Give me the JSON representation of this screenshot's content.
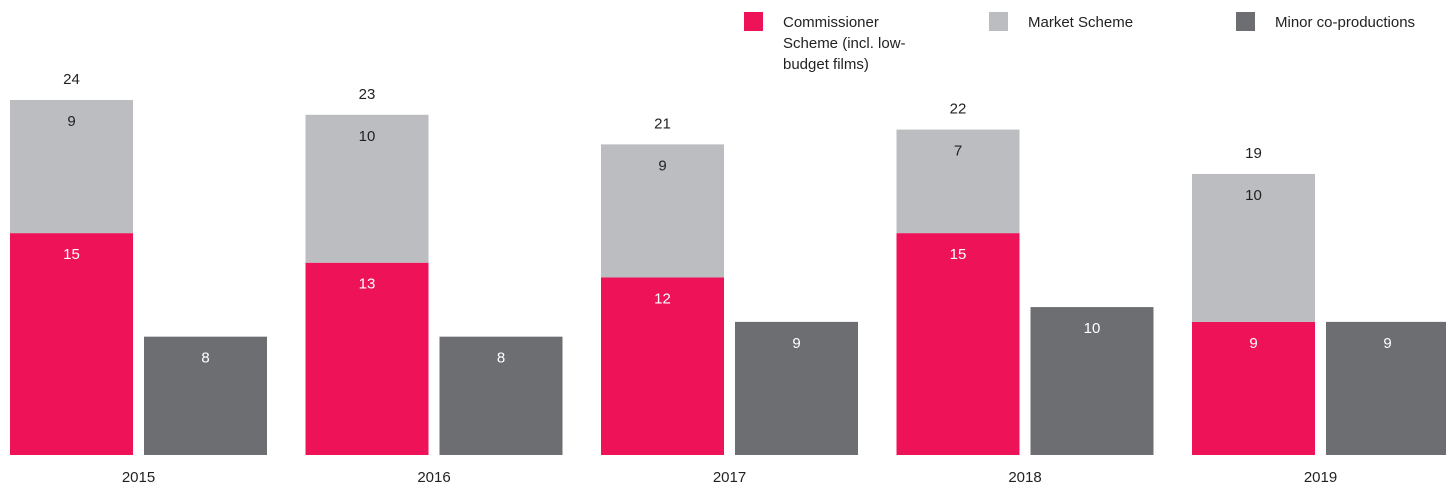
{
  "chart_data": {
    "type": "bar",
    "categories": [
      "2015",
      "2016",
      "2017",
      "2018",
      "2019"
    ],
    "series": [
      {
        "name": "Commissioner Scheme (incl. low-budget films)",
        "color": "#ee1358",
        "values": [
          15,
          13,
          12,
          15,
          9
        ]
      },
      {
        "name": "Market Scheme",
        "color": "#bcbdc0",
        "values": [
          9,
          10,
          9,
          7,
          10
        ]
      },
      {
        "name": "Minor co-productions",
        "color": "#6d6e71",
        "values": [
          8,
          8,
          9,
          10,
          9
        ]
      }
    ],
    "totals": [
      24,
      23,
      21,
      22,
      19
    ],
    "ylim": [
      0,
      24
    ]
  }
}
